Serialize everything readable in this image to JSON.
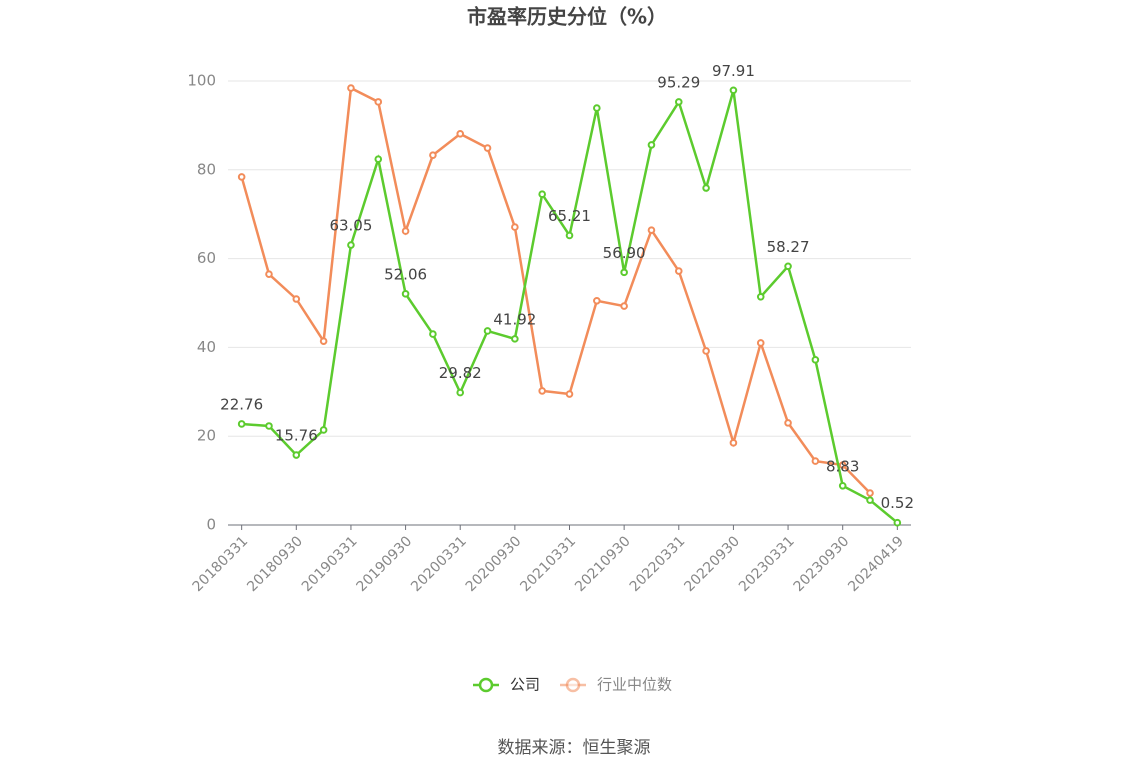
{
  "chart_data": {
    "type": "line",
    "title": "市盈率历史分位（%）",
    "source": "数据来源：恒生聚源",
    "categories": [
      "20180331",
      null,
      "20180930",
      null,
      "20190331",
      null,
      "20190930",
      null,
      "20200331",
      null,
      "20200930",
      null,
      "20210331",
      null,
      "20210930",
      null,
      "20220331",
      null,
      "20220930",
      null,
      "20230331",
      null,
      "20230930",
      null,
      "20240419"
    ],
    "series": [
      {
        "name": "公司",
        "color": "#5ccb2e",
        "values": [
          22.76,
          22.3,
          15.76,
          21.4,
          63.05,
          82.4,
          52.06,
          43.0,
          29.82,
          43.7,
          41.92,
          74.5,
          65.21,
          93.9,
          56.9,
          85.6,
          95.29,
          75.9,
          97.91,
          51.4,
          58.27,
          37.2,
          8.83,
          5.6,
          0.52
        ],
        "value_labels": [
          "22.76",
          null,
          "15.76",
          null,
          "63.05",
          null,
          "52.06",
          null,
          "29.82",
          null,
          "41.92",
          null,
          "65.21",
          null,
          "56.90",
          null,
          "95.29",
          null,
          "97.91",
          null,
          "58.27",
          null,
          "8.83",
          null,
          "0.52"
        ]
      },
      {
        "name": "行业中位数",
        "color": "#f28c5a",
        "values": [
          78.4,
          56.5,
          50.9,
          41.4,
          98.4,
          95.3,
          66.2,
          83.3,
          88.1,
          84.9,
          67.1,
          30.2,
          29.5,
          50.5,
          49.3,
          66.4,
          57.2,
          39.2,
          18.5,
          41.0,
          23.0,
          14.4,
          13.5,
          7.2,
          null
        ]
      }
    ],
    "ylim": [
      0,
      100
    ],
    "yticks": [
      0,
      20,
      40,
      60,
      80,
      100
    ],
    "grid": true
  }
}
